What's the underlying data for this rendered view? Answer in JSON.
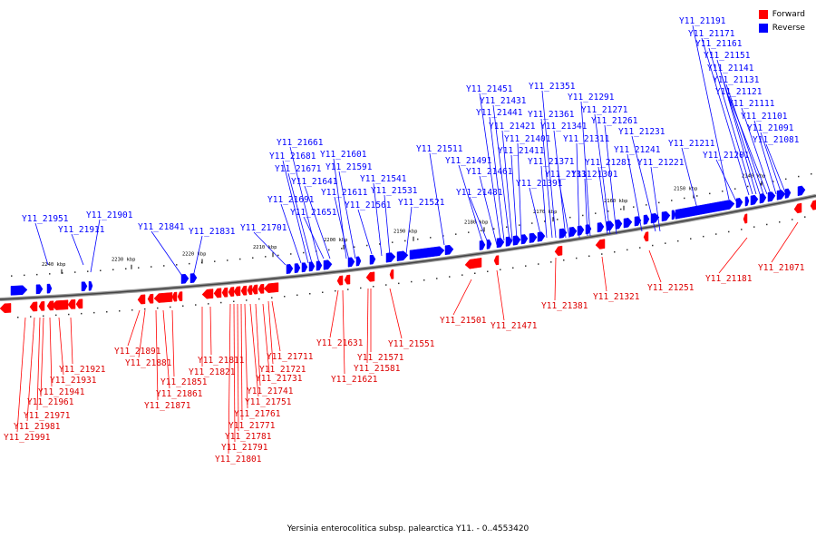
{
  "legend": {
    "forward_label": "Forward",
    "reverse_label": "Reverse",
    "forward_color": "#ff0000",
    "reverse_color": "#0000ff"
  },
  "caption": "Yersinia enterocolitica subsp. palearctica Y11. - 0..4553420",
  "scale_labels": [
    "2240 kbp",
    "2230 kbp",
    "2220 kbp",
    "2210 kbp",
    "2200 kbp",
    "2190 kbp",
    "2180 kbp",
    "2170 kbp",
    "2160 kbp",
    "2150 kbp",
    "2140 kbp"
  ],
  "reverse_genes": [
    "Y11_21951",
    "Y11_21911",
    "Y11_21901",
    "Y11_21841",
    "Y11_21831",
    "Y11_21701",
    "Y11_21691",
    "Y11_21681",
    "Y11_21671",
    "Y11_21661",
    "Y11_21651",
    "Y11_21641",
    "Y11_21611",
    "Y11_21601",
    "Y11_21591",
    "Y11_21561",
    "Y11_21541",
    "Y11_21531",
    "Y11_21521",
    "Y11_21511",
    "Y11_21491",
    "Y11_21481",
    "Y11_21461",
    "Y11_21451",
    "Y11_21441",
    "Y11_21431",
    "Y11_21421",
    "Y11_21411",
    "Y11_21401",
    "Y11_21391",
    "Y11_21371",
    "Y11_21361",
    "Y11_21351",
    "Y11_21341",
    "Y11_21331",
    "Y11_21311",
    "Y11_21301",
    "Y11_21291",
    "Y11_21281",
    "Y11_21271",
    "Y11_21261",
    "Y11_21241",
    "Y11_21231",
    "Y11_21221",
    "Y11_21211",
    "Y11_21201",
    "Y11_21191",
    "Y11_21171",
    "Y11_21161",
    "Y11_21151",
    "Y11_21141",
    "Y11_21131",
    "Y11_21121",
    "Y11_21111",
    "Y11_21101",
    "Y11_21091",
    "Y11_21081"
  ],
  "forward_genes": [
    "Y11_21991",
    "Y11_21981",
    "Y11_21971",
    "Y11_21961",
    "Y11_21941",
    "Y11_21931",
    "Y11_21921",
    "Y11_21891",
    "Y11_21881",
    "Y11_21871",
    "Y11_21861",
    "Y11_21851",
    "Y11_21821",
    "Y11_21811",
    "Y11_21801",
    "Y11_21791",
    "Y11_21781",
    "Y11_21771",
    "Y11_21761",
    "Y11_21751",
    "Y11_21741",
    "Y11_21731",
    "Y11_21721",
    "Y11_21711",
    "Y11_21631",
    "Y11_21621",
    "Y11_21581",
    "Y11_21571",
    "Y11_21551",
    "Y11_21501",
    "Y11_21471",
    "Y11_21381",
    "Y11_21321",
    "Y11_21251",
    "Y11_21181",
    "Y11_21071"
  ]
}
